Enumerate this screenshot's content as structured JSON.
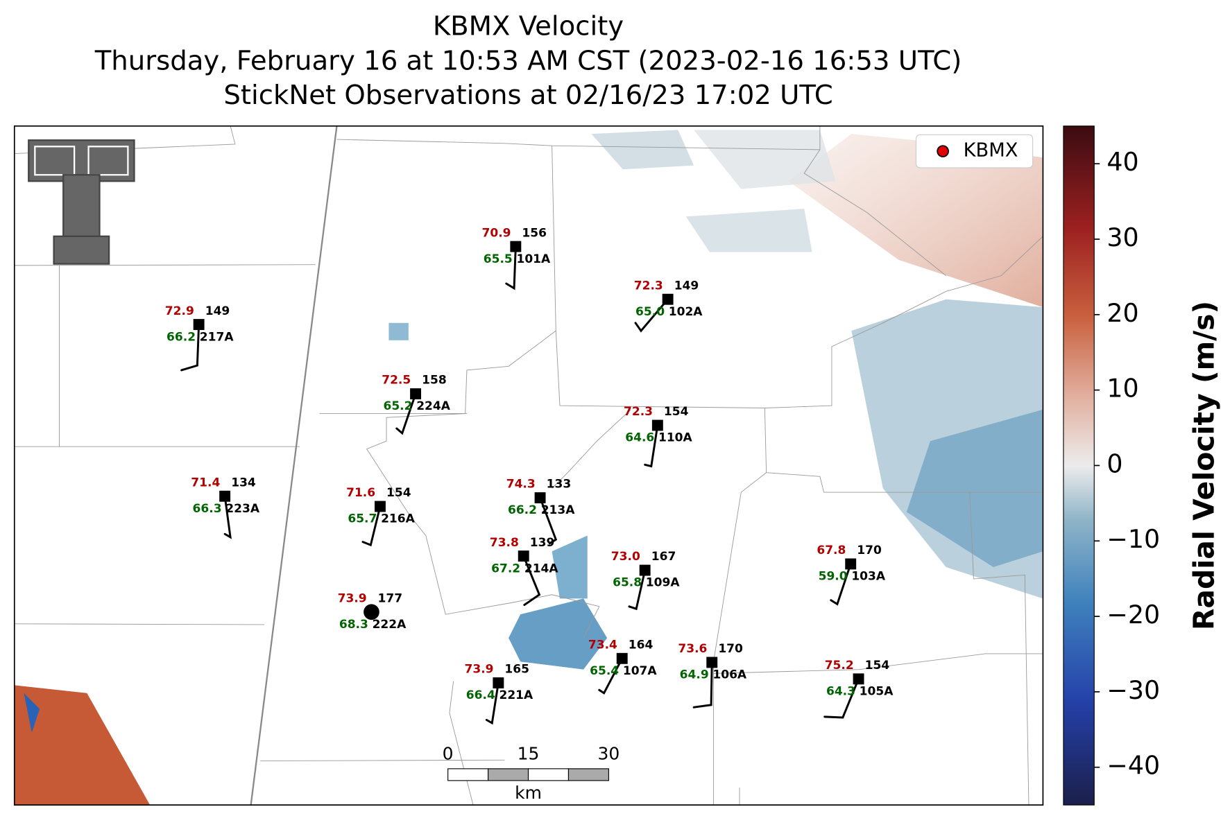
{
  "title": {
    "lines": [
      "KBMX Velocity",
      "Thursday, February 16 at 10:53 AM CST (2023-02-16 16:53 UTC)",
      "StickNet Observations at 02/16/23 17:02 UTC"
    ]
  },
  "legend": {
    "label": "KBMX"
  },
  "scale_bar": {
    "ticks": [
      "0",
      "15",
      "30"
    ],
    "unit": "km"
  },
  "colorbar": {
    "label": "Radial Velocity (m/s)",
    "clim": [
      -45,
      45
    ],
    "ticks": [
      {
        "value": -40,
        "label": "−40"
      },
      {
        "value": -30,
        "label": "−30"
      },
      {
        "value": -20,
        "label": "−20"
      },
      {
        "value": -10,
        "label": "−10"
      },
      0,
      10,
      20,
      30,
      40
    ]
  },
  "stations": [
    {
      "id": "101A",
      "temperature": "70.9",
      "pressure": "156",
      "dewpoint": "65.5"
    },
    {
      "id": "102A",
      "temperature": "72.3",
      "pressure": "149",
      "dewpoint": "65.0"
    },
    {
      "id": "217A",
      "temperature": "72.9",
      "pressure": "149",
      "dewpoint": "66.2"
    },
    {
      "id": "224A",
      "temperature": "72.5",
      "pressure": "158",
      "dewpoint": "65.2"
    },
    {
      "id": "110A",
      "temperature": "72.3",
      "pressure": "154",
      "dewpoint": "64.6"
    },
    {
      "id": "223A",
      "temperature": "71.4",
      "pressure": "134",
      "dewpoint": "66.3"
    },
    {
      "id": "216A",
      "temperature": "71.6",
      "pressure": "154",
      "dewpoint": "65.7"
    },
    {
      "id": "213A",
      "temperature": "74.3",
      "pressure": "133",
      "dewpoint": "66.2"
    },
    {
      "id": "214A",
      "temperature": "73.8",
      "pressure": "139",
      "dewpoint": "67.2"
    },
    {
      "id": "109A",
      "temperature": "73.0",
      "pressure": "167",
      "dewpoint": "65.8"
    },
    {
      "id": "103A",
      "temperature": "67.8",
      "pressure": "170",
      "dewpoint": "59.0"
    },
    {
      "id": "222A",
      "temperature": "73.9",
      "pressure": "177",
      "dewpoint": "68.3"
    },
    {
      "id": "107A",
      "temperature": "73.4",
      "pressure": "164",
      "dewpoint": "65.4"
    },
    {
      "id": "106A",
      "temperature": "73.6",
      "pressure": "170",
      "dewpoint": "64.9"
    },
    {
      "id": "221A",
      "temperature": "73.9",
      "pressure": "165",
      "dewpoint": "66.4"
    },
    {
      "id": "105A",
      "temperature": "75.2",
      "pressure": "154",
      "dewpoint": "64.3"
    }
  ]
}
